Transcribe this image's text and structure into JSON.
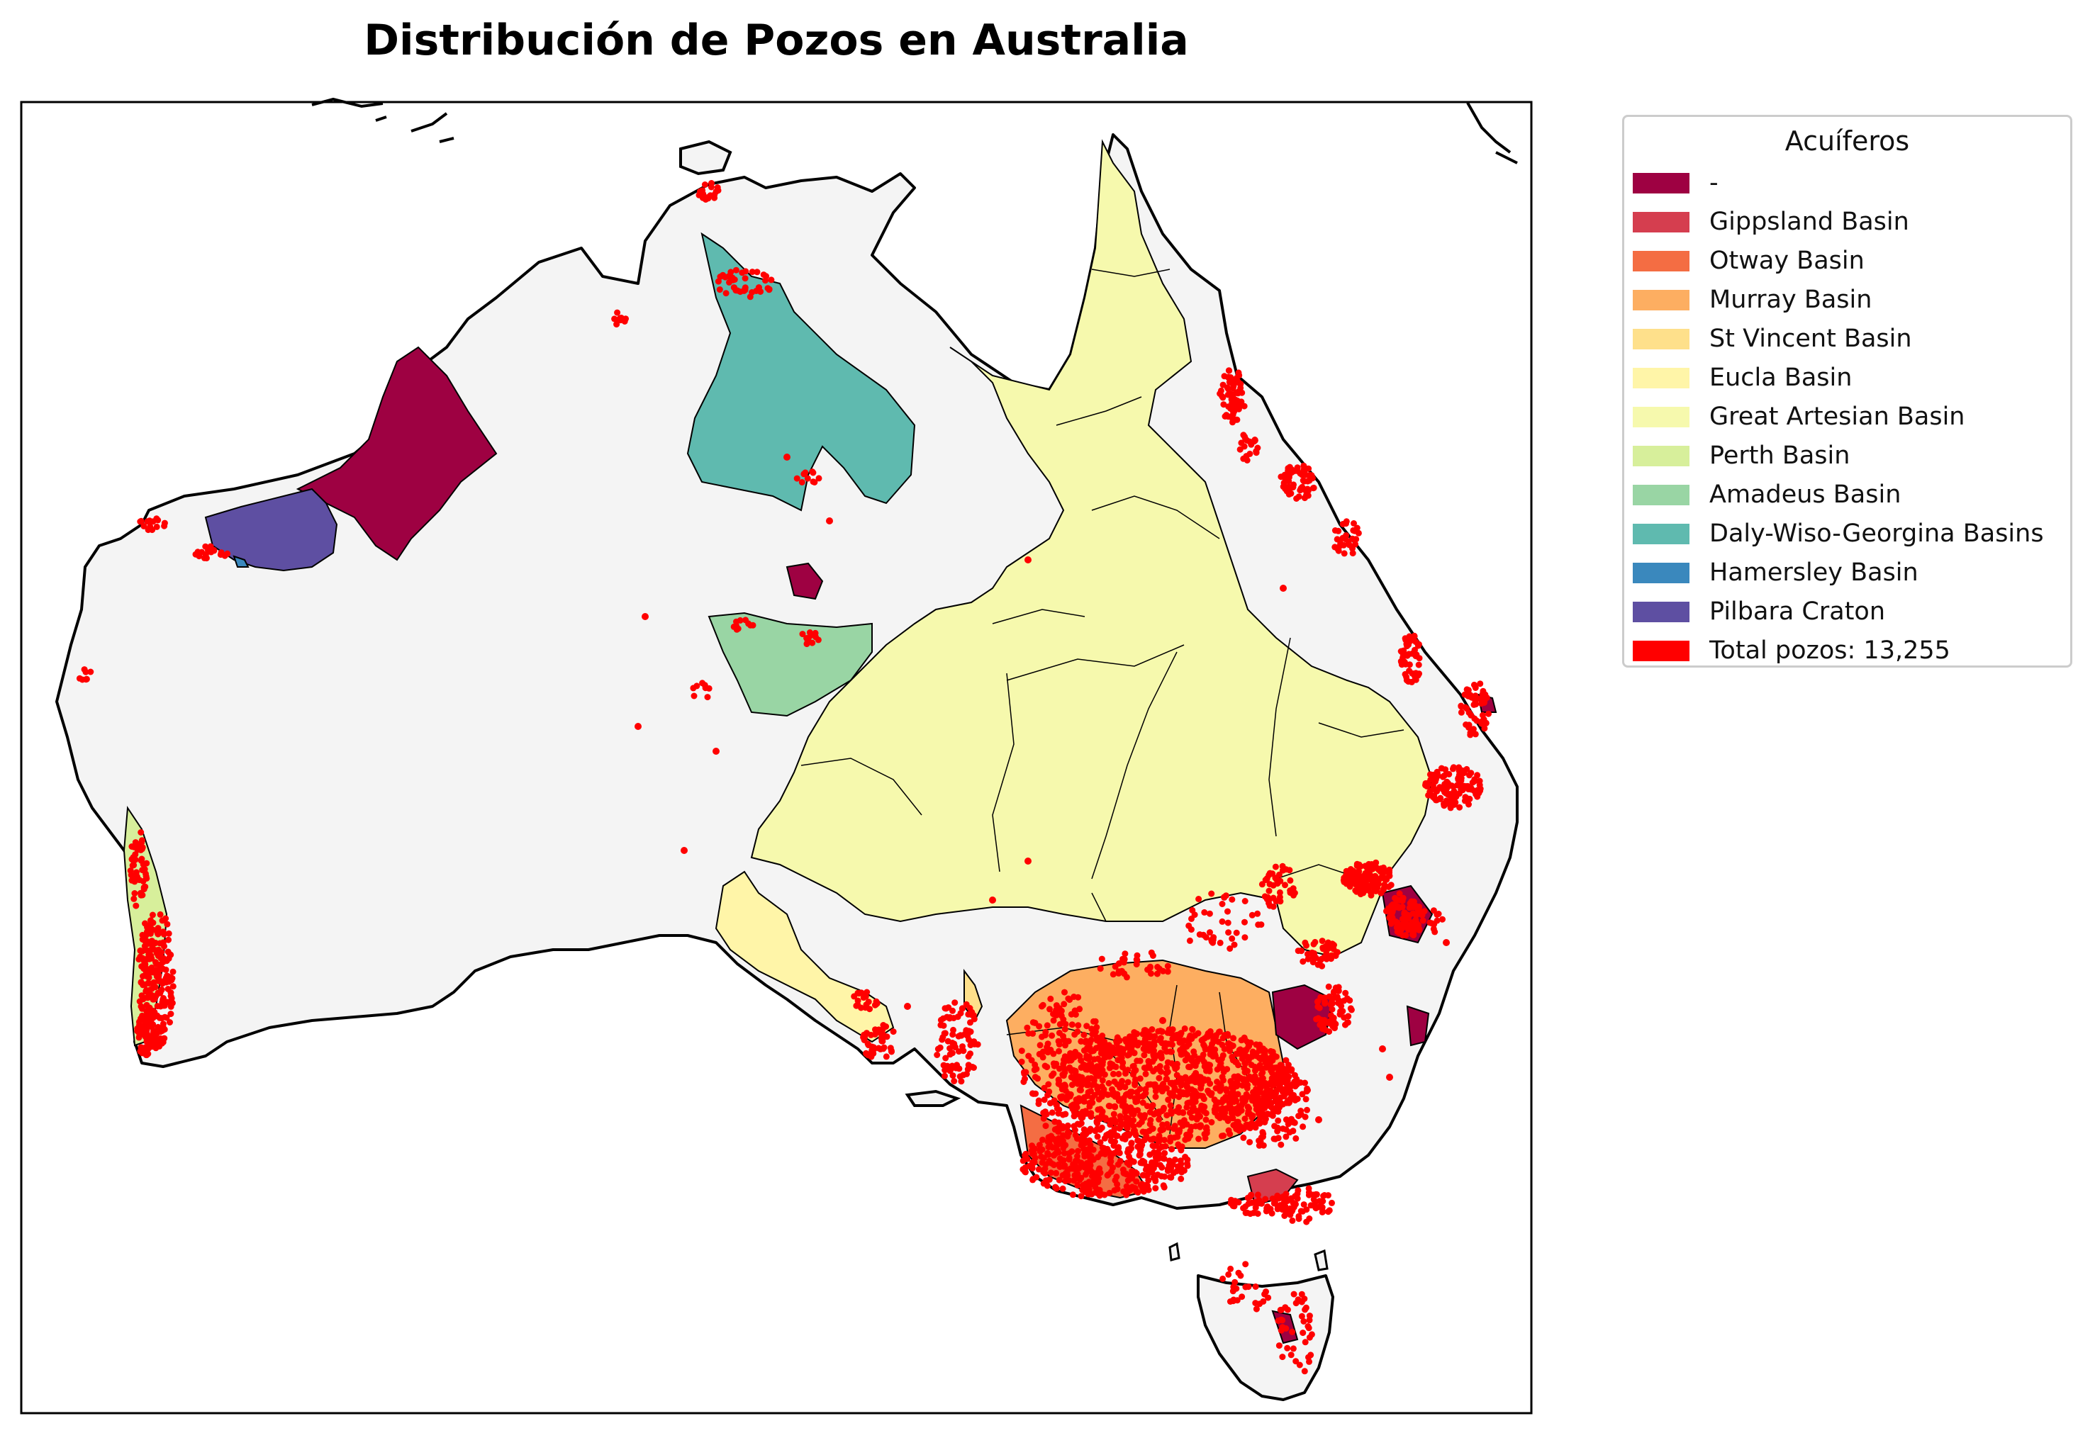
{
  "title": "Distribución de Pozos en Australia",
  "legend": {
    "title": "Acuíferos",
    "items": [
      {
        "label": "-",
        "color": "#9e0142"
      },
      {
        "label": "Gippsland Basin",
        "color": "#d53e4f"
      },
      {
        "label": "Otway Basin",
        "color": "#f46d43"
      },
      {
        "label": "Murray Basin",
        "color": "#fdae61"
      },
      {
        "label": "St Vincent Basin",
        "color": "#fee08b"
      },
      {
        "label": "Eucla Basin",
        "color": "#fff5a8"
      },
      {
        "label": "Great Artesian Basin",
        "color": "#f6f9ad"
      },
      {
        "label": "Perth Basin",
        "color": "#d7ef9b"
      },
      {
        "label": "Amadeus Basin",
        "color": "#99d5a4"
      },
      {
        "label": "Daly-Wiso-Georgina Basins",
        "color": "#5fbaaf"
      },
      {
        "label": "Hamersley Basin",
        "color": "#3a88bd"
      },
      {
        "label": "Pilbara Craton",
        "color": "#5e4fa2"
      },
      {
        "label": "Total pozos: 13,255",
        "color": "#ff0000"
      }
    ]
  },
  "colors": {
    "land": "#f4f4f4",
    "coast": "#000000",
    "wells": "#ff0000"
  }
}
